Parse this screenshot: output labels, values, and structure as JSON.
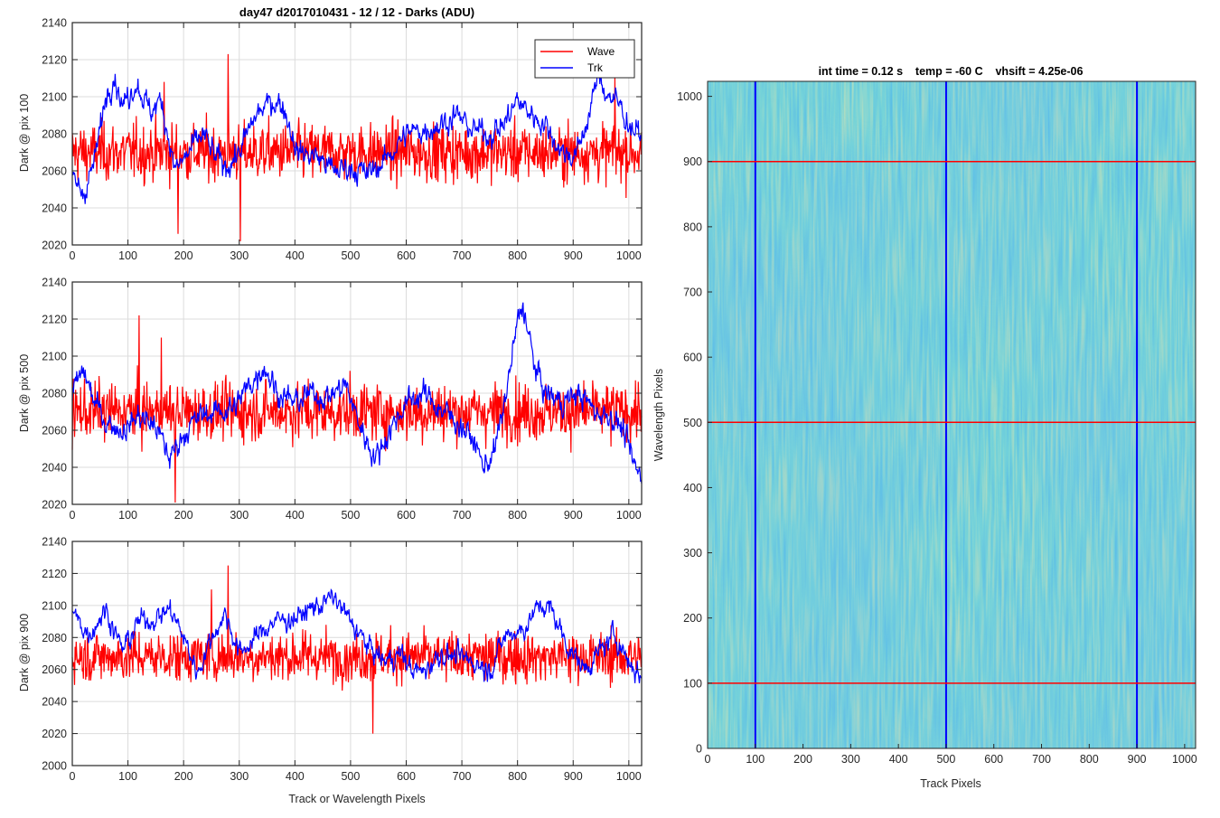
{
  "figure_title": "day47 d2017010431 - 12 / 12 - Darks (ADU)",
  "chart_data": [
    {
      "type": "line",
      "title": "day47 d2017010431 - 12 / 12 - Darks (ADU)",
      "xlabel": "",
      "ylabel": "Dark @ pix 100",
      "xlim": [
        0,
        1023
      ],
      "ylim": [
        2020,
        2140
      ],
      "xticks": [
        0,
        100,
        200,
        300,
        400,
        500,
        600,
        700,
        800,
        900,
        1000
      ],
      "yticks": [
        2020,
        2040,
        2060,
        2080,
        2100,
        2120,
        2140
      ],
      "grid": true,
      "legend": {
        "position": "top-right",
        "entries": [
          "Wave",
          "Trk"
        ]
      },
      "series": [
        {
          "name": "Wave",
          "color": "#ff0000",
          "mean": 2070,
          "noise": 11,
          "min": 2022,
          "max": 2123,
          "peaks": [
            [
              280,
              2123
            ],
            [
              165,
              2108
            ],
            [
              975,
              2110
            ],
            [
              302,
              2022
            ],
            [
              190,
              2026
            ]
          ]
        },
        {
          "name": "Trk",
          "color": "#0000ff",
          "mean": 2075,
          "noise": 5,
          "keypoints": [
            [
              0,
              2055
            ],
            [
              20,
              2048
            ],
            [
              40,
              2065
            ],
            [
              60,
              2100
            ],
            [
              75,
              2113
            ],
            [
              90,
              2095
            ],
            [
              115,
              2108
            ],
            [
              140,
              2092
            ],
            [
              160,
              2098
            ],
            [
              185,
              2060
            ],
            [
              210,
              2070
            ],
            [
              235,
              2080
            ],
            [
              255,
              2068
            ],
            [
              275,
              2062
            ],
            [
              300,
              2070
            ],
            [
              330,
              2090
            ],
            [
              360,
              2098
            ],
            [
              380,
              2095
            ],
            [
              405,
              2070
            ],
            [
              440,
              2068
            ],
            [
              470,
              2060
            ],
            [
              500,
              2062
            ],
            [
              530,
              2058
            ],
            [
              560,
              2065
            ],
            [
              600,
              2080
            ],
            [
              630,
              2082
            ],
            [
              660,
              2085
            ],
            [
              690,
              2090
            ],
            [
              720,
              2082
            ],
            [
              750,
              2080
            ],
            [
              775,
              2085
            ],
            [
              800,
              2098
            ],
            [
              820,
              2092
            ],
            [
              850,
              2085
            ],
            [
              880,
              2070
            ],
            [
              905,
              2068
            ],
            [
              930,
              2092
            ],
            [
              945,
              2112
            ],
            [
              960,
              2102
            ],
            [
              985,
              2095
            ],
            [
              1000,
              2085
            ],
            [
              1023,
              2078
            ]
          ]
        }
      ]
    },
    {
      "type": "line",
      "xlabel": "",
      "ylabel": "Dark @ pix 500",
      "xlim": [
        0,
        1023
      ],
      "ylim": [
        2020,
        2140
      ],
      "xticks": [
        0,
        100,
        200,
        300,
        400,
        500,
        600,
        700,
        800,
        900,
        1000
      ],
      "yticks": [
        2020,
        2040,
        2060,
        2080,
        2100,
        2120,
        2140
      ],
      "grid": true,
      "series": [
        {
          "name": "Wave",
          "color": "#ff0000",
          "mean": 2070,
          "noise": 11,
          "min": 2020,
          "max": 2122,
          "peaks": [
            [
              120,
              2122
            ],
            [
              160,
              2110
            ],
            [
              185,
              2020
            ]
          ]
        },
        {
          "name": "Trk",
          "color": "#0000ff",
          "mean": 2068,
          "noise": 5,
          "keypoints": [
            [
              0,
              2080
            ],
            [
              20,
              2092
            ],
            [
              40,
              2075
            ],
            [
              60,
              2065
            ],
            [
              90,
              2060
            ],
            [
              120,
              2068
            ],
            [
              150,
              2062
            ],
            [
              175,
              2045
            ],
            [
              200,
              2058
            ],
            [
              230,
              2068
            ],
            [
              260,
              2070
            ],
            [
              290,
              2072
            ],
            [
              320,
              2085
            ],
            [
              345,
              2095
            ],
            [
              370,
              2080
            ],
            [
              400,
              2075
            ],
            [
              430,
              2080
            ],
            [
              460,
              2078
            ],
            [
              490,
              2085
            ],
            [
              520,
              2060
            ],
            [
              545,
              2045
            ],
            [
              570,
              2060
            ],
            [
              600,
              2075
            ],
            [
              630,
              2080
            ],
            [
              660,
              2072
            ],
            [
              690,
              2065
            ],
            [
              720,
              2055
            ],
            [
              740,
              2040
            ],
            [
              760,
              2050
            ],
            [
              780,
              2080
            ],
            [
              800,
              2118
            ],
            [
              810,
              2128
            ],
            [
              830,
              2095
            ],
            [
              850,
              2080
            ],
            [
              880,
              2075
            ],
            [
              910,
              2080
            ],
            [
              940,
              2070
            ],
            [
              970,
              2068
            ],
            [
              990,
              2060
            ],
            [
              1010,
              2040
            ],
            [
              1023,
              2035
            ]
          ]
        }
      ]
    },
    {
      "type": "line",
      "xlabel": "Track or Wavelength Pixels",
      "ylabel": "Dark @ pix 900",
      "xlim": [
        0,
        1023
      ],
      "ylim": [
        2000,
        2140
      ],
      "xticks": [
        0,
        100,
        200,
        300,
        400,
        500,
        600,
        700,
        800,
        900,
        1000
      ],
      "yticks": [
        2000,
        2020,
        2040,
        2060,
        2080,
        2100,
        2120,
        2140
      ],
      "grid": true,
      "series": [
        {
          "name": "Wave",
          "color": "#ff0000",
          "mean": 2068,
          "noise": 11,
          "min": 2020,
          "max": 2125,
          "peaks": [
            [
              280,
              2125
            ],
            [
              540,
              2020
            ],
            [
              250,
              2110
            ]
          ]
        },
        {
          "name": "Trk",
          "color": "#0000ff",
          "mean": 2075,
          "noise": 5,
          "keypoints": [
            [
              0,
              2095
            ],
            [
              30,
              2082
            ],
            [
              60,
              2098
            ],
            [
              90,
              2072
            ],
            [
              120,
              2090
            ],
            [
              150,
              2092
            ],
            [
              175,
              2098
            ],
            [
              200,
              2080
            ],
            [
              225,
              2058
            ],
            [
              250,
              2080
            ],
            [
              275,
              2095
            ],
            [
              300,
              2070
            ],
            [
              330,
              2080
            ],
            [
              360,
              2090
            ],
            [
              400,
              2092
            ],
            [
              440,
              2100
            ],
            [
              470,
              2105
            ],
            [
              500,
              2090
            ],
            [
              530,
              2075
            ],
            [
              560,
              2065
            ],
            [
              590,
              2070
            ],
            [
              610,
              2060
            ],
            [
              630,
              2058
            ],
            [
              660,
              2070
            ],
            [
              690,
              2068
            ],
            [
              720,
              2065
            ],
            [
              750,
              2060
            ],
            [
              780,
              2082
            ],
            [
              810,
              2085
            ],
            [
              840,
              2100
            ],
            [
              860,
              2098
            ],
            [
              890,
              2075
            ],
            [
              920,
              2060
            ],
            [
              950,
              2072
            ],
            [
              975,
              2082
            ],
            [
              1000,
              2065
            ],
            [
              1023,
              2055
            ]
          ]
        }
      ]
    },
    {
      "type": "heatmap",
      "title": "int time = 0.12 s    temp = -60 C    vhsift = 4.25e-06",
      "xlabel": "Track Pixels",
      "ylabel": "Wavelength Pixels",
      "xlim": [
        0,
        1023
      ],
      "ylim": [
        0,
        1023
      ],
      "xticks": [
        0,
        100,
        200,
        300,
        400,
        500,
        600,
        700,
        800,
        900,
        1000
      ],
      "yticks": [
        0,
        100,
        200,
        300,
        400,
        500,
        600,
        700,
        800,
        900,
        1000
      ],
      "colormap": [
        "#2c84d9",
        "#1fa0b8",
        "#3cbf8c",
        "#a8c858"
      ],
      "vertical_markers": {
        "color": "#0000ff",
        "x": [
          100,
          500,
          900
        ]
      },
      "horizontal_markers": {
        "color": "#ff0000",
        "y": [
          100,
          500,
          900
        ]
      }
    }
  ]
}
